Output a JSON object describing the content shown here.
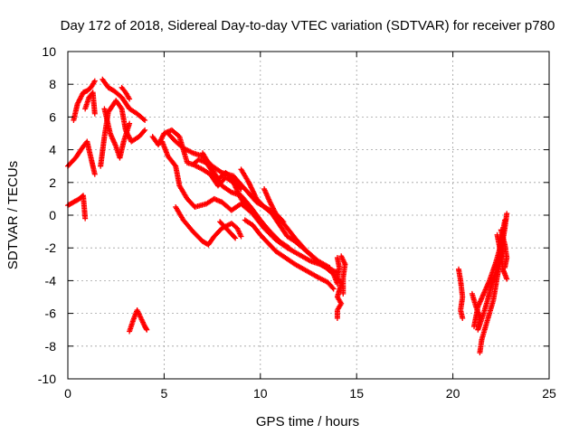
{
  "chart_data": {
    "type": "scatter",
    "title": "Day 172 of 2018, Sidereal Day-to-day VTEC variation (SDTVAR) for receiver p780",
    "xlabel": "GPS time / hours",
    "ylabel": "SDTVAR / TECUs",
    "xlim": [
      0,
      25
    ],
    "ylim": [
      -10,
      10
    ],
    "grid": true,
    "marker": "+",
    "x_ticks": [
      0,
      5,
      10,
      15,
      20,
      25
    ],
    "x_tick_labels": [
      "0",
      "5",
      "10",
      "15",
      "20",
      "25"
    ],
    "y_ticks": [
      -10,
      -8,
      -6,
      -4,
      -2,
      0,
      2,
      4,
      6,
      8,
      10
    ],
    "y_tick_labels": [
      "-10",
      "-8",
      "-6",
      "-4",
      "-2",
      "0",
      "2",
      "4",
      "6",
      "8",
      "10"
    ],
    "series": [
      {
        "name": "SDTVAR",
        "color": "#ff0000",
        "tracks": [
          [
            [
              0.0,
              3.0
            ],
            [
              0.4,
              3.5
            ],
            [
              0.8,
              4.2
            ],
            [
              1.0,
              4.5
            ],
            [
              1.2,
              3.5
            ],
            [
              1.4,
              2.5
            ]
          ],
          [
            [
              0.0,
              0.6
            ],
            [
              0.3,
              0.8
            ],
            [
              0.6,
              1.0
            ],
            [
              0.8,
              1.2
            ],
            [
              0.9,
              -0.2
            ]
          ],
          [
            [
              0.3,
              5.8
            ],
            [
              0.5,
              6.8
            ],
            [
              0.8,
              7.5
            ],
            [
              1.0,
              7.6
            ],
            [
              1.2,
              7.8
            ],
            [
              1.4,
              8.2
            ]
          ],
          [
            [
              0.9,
              6.5
            ],
            [
              1.1,
              7.2
            ],
            [
              1.3,
              7.5
            ],
            [
              1.4,
              6.2
            ]
          ],
          [
            [
              1.8,
              8.3
            ],
            [
              2.1,
              7.8
            ],
            [
              2.4,
              7.6
            ],
            [
              2.8,
              7.2
            ],
            [
              3.2,
              6.5
            ],
            [
              3.6,
              6.2
            ],
            [
              4.0,
              5.8
            ]
          ],
          [
            [
              1.7,
              3.0
            ],
            [
              1.9,
              4.8
            ],
            [
              2.1,
              6.3
            ],
            [
              2.5,
              7.0
            ],
            [
              2.8,
              6.5
            ],
            [
              3.0,
              5.2
            ],
            [
              3.3,
              4.5
            ],
            [
              3.7,
              4.8
            ],
            [
              4.0,
              5.2
            ]
          ],
          [
            [
              1.9,
              6.5
            ],
            [
              2.2,
              5.0
            ],
            [
              2.5,
              4.2
            ],
            [
              2.7,
              3.5
            ],
            [
              2.9,
              4.5
            ],
            [
              3.2,
              5.6
            ]
          ],
          [
            [
              2.8,
              7.8
            ],
            [
              3.0,
              7.5
            ],
            [
              3.2,
              7.1
            ]
          ],
          [
            [
              3.2,
              -7.1
            ],
            [
              3.4,
              -6.4
            ],
            [
              3.6,
              -5.8
            ],
            [
              3.8,
              -6.3
            ],
            [
              4.0,
              -6.8
            ],
            [
              4.1,
              -7.0
            ]
          ],
          [
            [
              4.4,
              4.8
            ],
            [
              4.7,
              4.3
            ],
            [
              5.0,
              5.0
            ],
            [
              5.4,
              5.2
            ],
            [
              5.8,
              4.8
            ],
            [
              6.0,
              4.0
            ],
            [
              6.2,
              3.2
            ],
            [
              6.5,
              3.1
            ],
            [
              7.0,
              2.8
            ],
            [
              7.4,
              2.5
            ],
            [
              7.8,
              1.8
            ],
            [
              8.2,
              2.3
            ],
            [
              8.6,
              2.0
            ],
            [
              9.0,
              1.0
            ],
            [
              9.4,
              0.4
            ],
            [
              9.8,
              -0.2
            ],
            [
              10.2,
              -0.8
            ],
            [
              10.8,
              -1.5
            ],
            [
              11.4,
              -2.0
            ],
            [
              12.0,
              -2.4
            ],
            [
              12.6,
              -2.8
            ],
            [
              13.1,
              -3.0
            ],
            [
              13.6,
              -3.3
            ],
            [
              14.0,
              -3.5
            ]
          ],
          [
            [
              5.2,
              5.0
            ],
            [
              5.6,
              4.5
            ],
            [
              6.0,
              4.1
            ],
            [
              6.5,
              3.8
            ],
            [
              7.0,
              3.6
            ],
            [
              7.5,
              3.0
            ],
            [
              8.0,
              2.6
            ],
            [
              8.6,
              2.4
            ],
            [
              9.2,
              1.6
            ],
            [
              9.8,
              0.8
            ],
            [
              10.5,
              0.3
            ],
            [
              11.2,
              -0.5
            ],
            [
              11.8,
              -1.4
            ],
            [
              12.4,
              -2.2
            ],
            [
              13.0,
              -2.8
            ],
            [
              13.6,
              -3.2
            ]
          ],
          [
            [
              4.9,
              4.5
            ],
            [
              5.2,
              3.6
            ],
            [
              5.6,
              3.0
            ],
            [
              5.8,
              1.8
            ],
            [
              6.2,
              1.0
            ],
            [
              6.6,
              0.5
            ],
            [
              7.2,
              0.7
            ],
            [
              7.6,
              1.0
            ],
            [
              8.0,
              0.8
            ],
            [
              8.5,
              0.3
            ],
            [
              9.0,
              0.7
            ],
            [
              9.5,
              0.2
            ]
          ],
          [
            [
              7.0,
              3.8
            ],
            [
              7.4,
              3.0
            ],
            [
              7.8,
              2.2
            ],
            [
              8.2,
              2.6
            ],
            [
              8.6,
              2.2
            ],
            [
              9.0,
              1.6
            ]
          ],
          [
            [
              5.6,
              0.5
            ],
            [
              6.0,
              -0.3
            ],
            [
              6.5,
              -1.0
            ],
            [
              7.0,
              -1.6
            ],
            [
              7.3,
              -1.8
            ],
            [
              7.6,
              -1.3
            ],
            [
              8.0,
              -0.8
            ],
            [
              8.5,
              -0.5
            ],
            [
              8.8,
              -0.8
            ],
            [
              9.0,
              -1.3
            ]
          ],
          [
            [
              6.5,
              3.1
            ],
            [
              6.8,
              3.4
            ],
            [
              7.2,
              3.2
            ],
            [
              7.6,
              2.5
            ],
            [
              8.0,
              1.8
            ],
            [
              8.5,
              1.4
            ],
            [
              9.0,
              1.2
            ],
            [
              9.5,
              0.5
            ],
            [
              10.0,
              -0.3
            ],
            [
              10.5,
              -1.0
            ],
            [
              11.0,
              -1.6
            ],
            [
              11.5,
              -2.0
            ]
          ],
          [
            [
              9.0,
              2.8
            ],
            [
              9.4,
              2.0
            ],
            [
              9.8,
              1.0
            ],
            [
              10.2,
              0.5
            ],
            [
              10.6,
              0.1
            ],
            [
              11.0,
              -0.6
            ],
            [
              11.4,
              -1.3
            ],
            [
              11.8,
              -1.6
            ],
            [
              12.2,
              -2.0
            ],
            [
              12.6,
              -2.4
            ],
            [
              13.0,
              -2.9
            ],
            [
              13.4,
              -3.2
            ],
            [
              13.8,
              -3.6
            ],
            [
              14.0,
              -4.2
            ]
          ],
          [
            [
              9.2,
              -0.3
            ],
            [
              9.6,
              -0.6
            ],
            [
              10.0,
              -1.2
            ],
            [
              10.4,
              -1.7
            ],
            [
              10.8,
              -2.2
            ],
            [
              11.3,
              -2.6
            ],
            [
              11.8,
              -3.0
            ],
            [
              12.4,
              -3.4
            ],
            [
              13.0,
              -3.8
            ],
            [
              13.5,
              -4.1
            ],
            [
              13.8,
              -4.5
            ]
          ],
          [
            [
              7.9,
              -0.4
            ],
            [
              8.3,
              -0.9
            ],
            [
              8.7,
              -1.4
            ]
          ],
          [
            [
              10.2,
              1.6
            ],
            [
              10.5,
              0.8
            ],
            [
              10.8,
              0.1
            ],
            [
              11.2,
              -0.4
            ]
          ],
          [
            [
              14.0,
              -2.6
            ],
            [
              14.1,
              -3.2
            ],
            [
              14.0,
              -3.8
            ],
            [
              14.2,
              -4.2
            ],
            [
              14.1,
              -4.6
            ],
            [
              14.0,
              -5.0
            ],
            [
              14.2,
              -5.4
            ],
            [
              14.0,
              -5.8
            ],
            [
              14.0,
              -6.3
            ]
          ],
          [
            [
              14.2,
              -2.5
            ],
            [
              14.4,
              -3.0
            ],
            [
              14.3,
              -3.8
            ],
            [
              14.3,
              -4.8
            ]
          ],
          [
            [
              20.3,
              -3.3
            ],
            [
              20.4,
              -4.0
            ],
            [
              20.5,
              -5.0
            ],
            [
              20.4,
              -5.8
            ],
            [
              20.5,
              -6.3
            ]
          ],
          [
            [
              21.0,
              -4.8
            ],
            [
              21.2,
              -5.6
            ],
            [
              21.4,
              -6.2
            ],
            [
              21.3,
              -7.0
            ],
            [
              21.6,
              -6.0
            ],
            [
              21.8,
              -5.2
            ],
            [
              22.0,
              -4.3
            ],
            [
              22.2,
              -3.6
            ],
            [
              22.4,
              -2.8
            ],
            [
              22.5,
              -2.0
            ],
            [
              22.6,
              -1.5
            ],
            [
              22.7,
              -0.8
            ],
            [
              22.8,
              0.1
            ]
          ],
          [
            [
              21.4,
              -8.4
            ],
            [
              21.5,
              -7.6
            ],
            [
              21.7,
              -6.8
            ],
            [
              21.9,
              -6.0
            ],
            [
              22.1,
              -5.2
            ],
            [
              22.2,
              -4.5
            ],
            [
              22.3,
              -3.8
            ],
            [
              22.4,
              -3.2
            ],
            [
              22.5,
              -2.6
            ],
            [
              22.6,
              -2.0
            ]
          ],
          [
            [
              21.1,
              -6.8
            ],
            [
              21.3,
              -5.6
            ],
            [
              21.6,
              -4.8
            ],
            [
              21.9,
              -4.0
            ],
            [
              22.2,
              -3.0
            ],
            [
              22.4,
              -2.2
            ],
            [
              22.6,
              -1.0
            ],
            [
              22.7,
              -0.3
            ]
          ],
          [
            [
              22.3,
              -1.2
            ],
            [
              22.5,
              -2.4
            ],
            [
              22.6,
              -3.3
            ],
            [
              22.7,
              -3.6
            ],
            [
              22.8,
              -3.9
            ]
          ],
          [
            [
              22.5,
              -0.9
            ],
            [
              22.7,
              -1.8
            ],
            [
              22.8,
              -2.6
            ],
            [
              22.7,
              -3.2
            ]
          ]
        ]
      }
    ]
  }
}
